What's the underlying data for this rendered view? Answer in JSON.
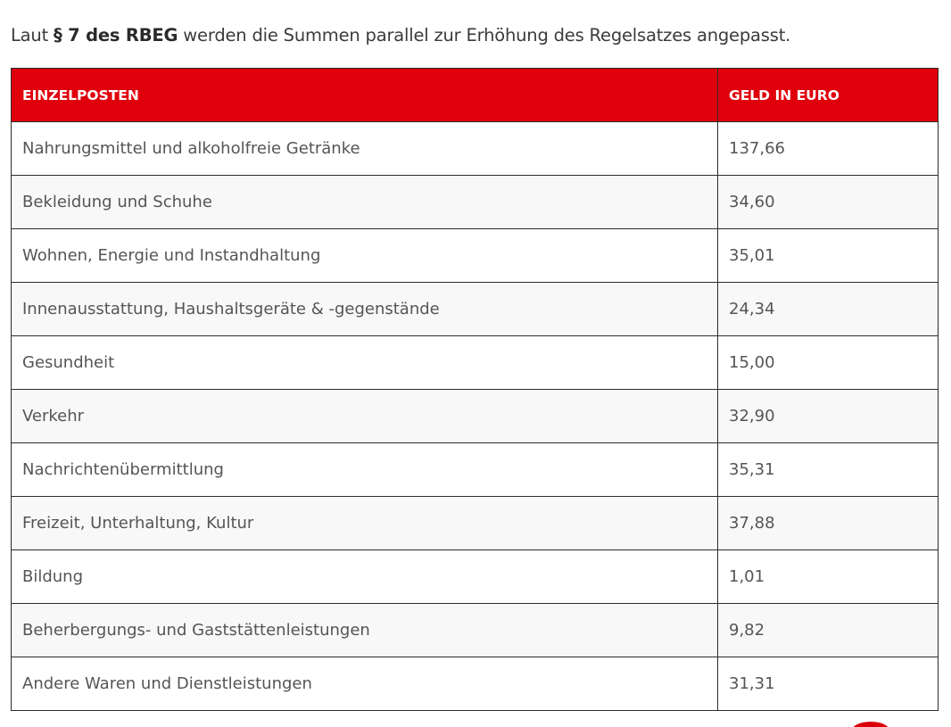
{
  "intro": {
    "prefix": "Laut ",
    "bold": "§ 7 des RBEG",
    "suffix": " werden die Summen parallel zur Erhöhung des Regelsatzes angepasst."
  },
  "table": {
    "headers": [
      "EINZELPOSTEN",
      "GELD IN EURO"
    ],
    "rows": [
      {
        "item": "Nahrungsmittel und alkoholfreie Getränke",
        "amount": "137,66"
      },
      {
        "item": "Bekleidung und Schuhe",
        "amount": "34,60"
      },
      {
        "item": "Wohnen, Energie und Instandhaltung",
        "amount": "35,01"
      },
      {
        "item": "Innenausstattung, Haushaltsgeräte & -gegenstände",
        "amount": "24,34"
      },
      {
        "item": "Gesundheit",
        "amount": "15,00"
      },
      {
        "item": "Verkehr",
        "amount": "32,90"
      },
      {
        "item": "Nachrichtenübermittlung",
        "amount": "35,31"
      },
      {
        "item": "Freizeit, Unterhaltung, Kultur",
        "amount": "37,88"
      },
      {
        "item": "Bildung",
        "amount": "1,01"
      },
      {
        "item": "Beherbergungs- und Gaststättenleistungen",
        "amount": "9,82"
      },
      {
        "item": "Andere Waren und Dienstleistungen",
        "amount": "31,31"
      }
    ]
  },
  "colors": {
    "header_bg": "#e0000b",
    "header_text": "#ffffff",
    "body_text": "#555555",
    "stripe": "#f8f8f8"
  }
}
